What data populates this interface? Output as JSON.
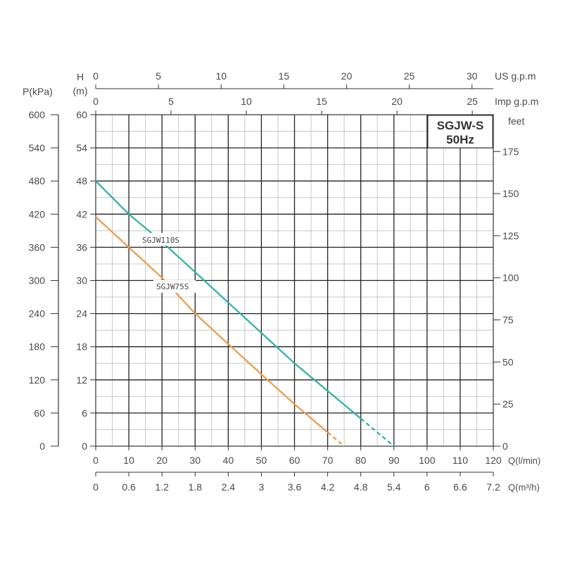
{
  "chart_data": {
    "type": "line",
    "title": "SGJW-S",
    "subtitle": "50Hz",
    "xlabel": "Q(l/min)",
    "ylabel": "H (m)",
    "xlim": [
      0,
      120
    ],
    "ylim": [
      0,
      60
    ],
    "grid": true,
    "axes": {
      "left_outer": {
        "label": "P(kPa)",
        "ticks": [
          "0",
          "60",
          "120",
          "180",
          "240",
          "300",
          "360",
          "420",
          "480",
          "540",
          "600"
        ]
      },
      "left_inner": {
        "label_line1": "H",
        "label_line2": "(m)",
        "ticks": [
          "0",
          "6",
          "12",
          "18",
          "24",
          "30",
          "36",
          "42",
          "48",
          "54",
          "60"
        ]
      },
      "right": {
        "label": "feet",
        "ticks": [
          "0",
          "25",
          "50",
          "75",
          "100",
          "125",
          "150",
          "175"
        ]
      },
      "bottom_primary": {
        "label": "Q(l/min)",
        "ticks": [
          "0",
          "10",
          "20",
          "30",
          "40",
          "50",
          "60",
          "70",
          "80",
          "90",
          "100",
          "110",
          "120"
        ]
      },
      "bottom_secondary": {
        "label": "Q(m³/h)",
        "ticks": [
          "0",
          "0.6",
          "1.2",
          "1.8",
          "2.4",
          "3",
          "3.6",
          "4.2",
          "4.8",
          "5.4",
          "6",
          "6.6",
          "7.2"
        ]
      },
      "top_us": {
        "label": "US g.p.m",
        "ticks": [
          "0",
          "5",
          "10",
          "15",
          "20",
          "25",
          "30"
        ]
      },
      "top_imp": {
        "label": "Imp g.p.m",
        "ticks": [
          "0",
          "5",
          "10",
          "15",
          "20",
          "25"
        ]
      }
    },
    "series": [
      {
        "name": "SGJW110S",
        "color": "#2bb3a3",
        "x": [
          0,
          10,
          20,
          30,
          40,
          50,
          60,
          70,
          80,
          90
        ],
        "values": [
          48,
          42,
          37,
          31.5,
          26,
          20.5,
          15,
          10,
          5,
          0
        ],
        "dashed_from_x": 80
      },
      {
        "name": "SGJW75S",
        "color": "#ef9a45",
        "x": [
          0,
          10,
          20,
          30,
          40,
          50,
          60,
          70,
          75
        ],
        "values": [
          41.5,
          36,
          30.5,
          24,
          18.5,
          13,
          7.6,
          2.5,
          0
        ],
        "dashed_from_x": 70
      }
    ]
  },
  "labels": {
    "title": "SGJW-S",
    "subtitle": "50Hz",
    "p_unit": "P(kPa)",
    "h_unit_1": "H",
    "h_unit_2": "(m)",
    "feet_unit": "feet",
    "us_gpm": "US g.p.m",
    "imp_gpm": "Imp g.p.m",
    "q_lmin": "Q(l/min)",
    "q_m3h": "Q(m³/h)",
    "curve1": "SGJW110S",
    "curve2": "SGJW75S"
  }
}
